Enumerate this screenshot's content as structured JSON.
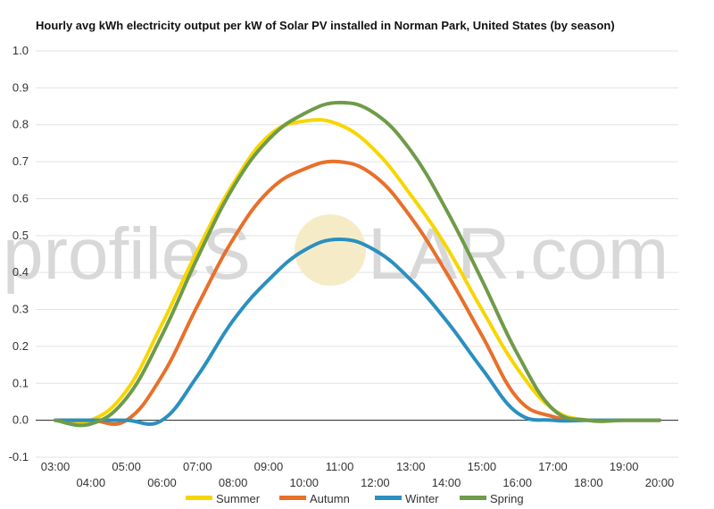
{
  "colors": {
    "summer": "#f7d600",
    "autumn": "#e8702a",
    "winter": "#2b8fc0",
    "spring": "#6f9b4a",
    "watermark": "#d8d8d8",
    "watermark_sun": "#f5ecc7",
    "grid": "#e3e3e3",
    "baseline": "#222222"
  },
  "watermark": {
    "left": "profileS",
    "right": "LAR.com"
  },
  "chart_data": {
    "type": "line",
    "title": "Hourly avg kWh electricity output per kW of Solar PV installed in Norman Park, United States (by season)",
    "xlabel": "",
    "ylabel": "",
    "x": [
      "03:00",
      "04:00",
      "05:00",
      "06:00",
      "07:00",
      "08:00",
      "09:00",
      "10:00",
      "11:00",
      "12:00",
      "13:00",
      "14:00",
      "15:00",
      "16:00",
      "17:00",
      "18:00",
      "19:00",
      "20:00"
    ],
    "x_ticks_row1": [
      "03:00",
      "05:00",
      "07:00",
      "09:00",
      "11:00",
      "13:00",
      "15:00",
      "17:00",
      "19:00"
    ],
    "x_ticks_row2": [
      "04:00",
      "06:00",
      "08:00",
      "10:00",
      "12:00",
      "14:00",
      "16:00",
      "18:00",
      "20:00"
    ],
    "ylim": [
      -0.1,
      1.0
    ],
    "y_ticks": [
      "1.0",
      "0.9",
      "0.8",
      "0.7",
      "0.6",
      "0.5",
      "0.4",
      "0.3",
      "0.2",
      "0.1",
      "0.0",
      "-0.1"
    ],
    "grid": true,
    "legend_position": "bottom",
    "series": [
      {
        "name": "Summer",
        "key": "summer",
        "values": [
          0.0,
          0.0,
          0.08,
          0.26,
          0.46,
          0.64,
          0.77,
          0.81,
          0.8,
          0.73,
          0.61,
          0.47,
          0.3,
          0.14,
          0.03,
          0.0,
          0.0,
          0.0
        ]
      },
      {
        "name": "Autumn",
        "key": "autumn",
        "values": [
          0.0,
          0.0,
          0.0,
          0.12,
          0.31,
          0.49,
          0.62,
          0.68,
          0.7,
          0.66,
          0.55,
          0.4,
          0.23,
          0.06,
          0.01,
          0.0,
          0.0,
          0.0
        ]
      },
      {
        "name": "Winter",
        "key": "winter",
        "values": [
          0.0,
          0.0,
          0.0,
          0.0,
          0.12,
          0.27,
          0.38,
          0.46,
          0.49,
          0.46,
          0.38,
          0.27,
          0.14,
          0.02,
          0.0,
          0.0,
          0.0,
          0.0
        ]
      },
      {
        "name": "Spring",
        "key": "spring",
        "values": [
          0.0,
          -0.01,
          0.06,
          0.23,
          0.44,
          0.63,
          0.76,
          0.83,
          0.86,
          0.83,
          0.73,
          0.57,
          0.38,
          0.18,
          0.03,
          0.0,
          0.0,
          0.0
        ]
      }
    ]
  }
}
